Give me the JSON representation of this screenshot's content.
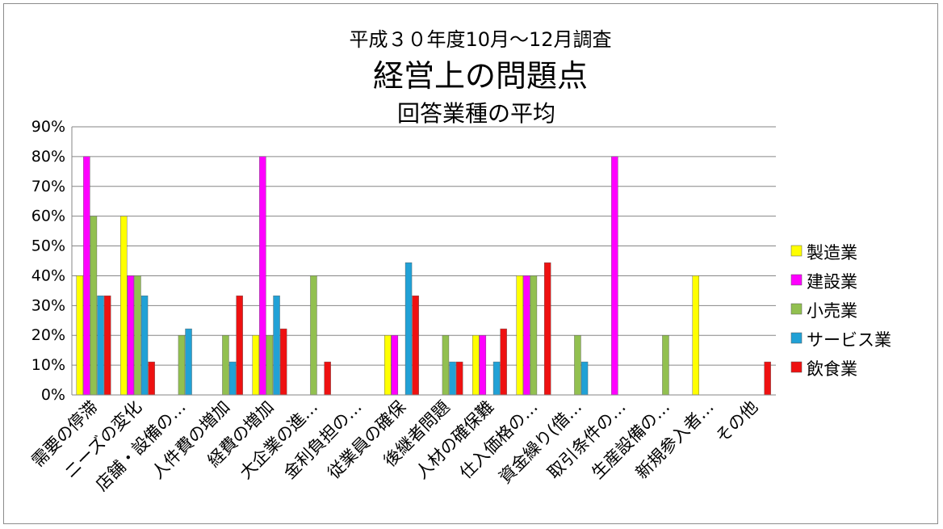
{
  "chart_data": {
    "type": "bar",
    "supertitle": "平成３０年度10月～12月調査",
    "title": "経営上の問題点",
    "subtitle": "回答業種の平均",
    "categories": [
      "需要の停滞",
      "ニーズの変化",
      "店舗・設備の…",
      "人件費の増加",
      "経費の増加",
      "大企業の進…",
      "金利負担の…",
      "従業員の確保",
      "後継者問題",
      "人材の確保難",
      "仕入価格の…",
      "資金繰り(借…",
      "取引条件の…",
      "生産設備の…",
      "新規参入者…",
      "その他"
    ],
    "yticks": [
      "0%",
      "10%",
      "20%",
      "30%",
      "40%",
      "50%",
      "60%",
      "70%",
      "80%",
      "90%"
    ],
    "ylim": [
      0,
      0.9
    ],
    "grid": true,
    "legend_position": "right",
    "series": [
      {
        "name": "製造業",
        "color": "#ffff00",
        "values": [
          0.4,
          0.6,
          0,
          0,
          0.2,
          0,
          0,
          0.2,
          0,
          0.2,
          0.4,
          0,
          0,
          0,
          0.4,
          0
        ]
      },
      {
        "name": "建設業",
        "color": "#ff00ff",
        "values": [
          0.8,
          0.4,
          0,
          0,
          0.8,
          0,
          0,
          0.2,
          0,
          0.2,
          0.4,
          0,
          0.8,
          0,
          0,
          0
        ]
      },
      {
        "name": "小売業",
        "color": "#92c050",
        "values": [
          0.6,
          0.4,
          0.2,
          0.2,
          0.2,
          0.4,
          0,
          0,
          0.2,
          0,
          0.4,
          0.2,
          0,
          0.2,
          0,
          0
        ]
      },
      {
        "name": "サービス業",
        "color": "#21a1d6",
        "values": [
          0.333,
          0.333,
          0.222,
          0.111,
          0.333,
          0,
          0,
          0.444,
          0.111,
          0.111,
          0,
          0.111,
          0,
          0,
          0,
          0
        ]
      },
      {
        "name": "飲食業",
        "color": "#ee1111",
        "values": [
          0.333,
          0.111,
          0,
          0.333,
          0.222,
          0.111,
          0,
          0.333,
          0.111,
          0.222,
          0.444,
          0,
          0,
          0,
          0,
          0.111
        ]
      }
    ]
  }
}
